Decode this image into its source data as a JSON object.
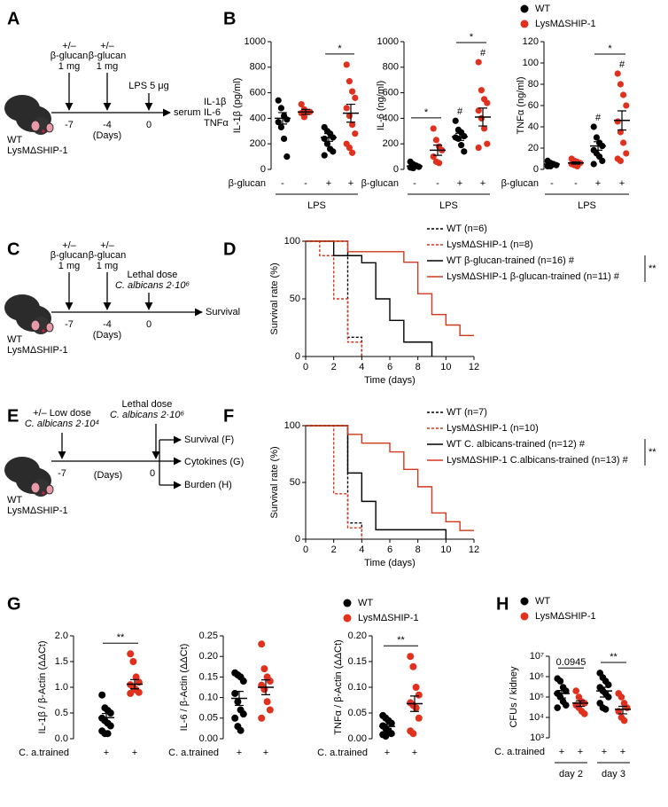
{
  "diagrams": {
    "A": {
      "label": "A",
      "doses": [
        {
          "sign": "+/–",
          "agent": "β-glucan",
          "dose": "1 mg",
          "day": "-7"
        },
        {
          "sign": "+/–",
          "agent": "β-glucan",
          "dose": "1 mg",
          "day": "-4"
        }
      ],
      "challenge": {
        "agent": "LPS 5 μg",
        "day": "0"
      },
      "unit": "(Days)",
      "readout": [
        "serum",
        "IL-1β",
        "IL-6",
        "TNFα"
      ],
      "mice": [
        "WT",
        "LysMΔSHIP-1"
      ]
    },
    "C": {
      "label": "C",
      "doses": [
        {
          "sign": "+/–",
          "agent": "β-glucan",
          "dose": "1 mg",
          "day": "-7"
        },
        {
          "sign": "+/–",
          "agent": "β-glucan",
          "dose": "1 mg",
          "day": "-4"
        }
      ],
      "challenge": {
        "dose": "Lethal dose",
        "agent": "C. albicans 2·10⁶",
        "day": "0"
      },
      "unit": "(Days)",
      "readout": "Survival",
      "mice": [
        "WT",
        "LysMΔSHIP-1"
      ]
    },
    "E": {
      "label": "E",
      "dose": {
        "text": "+/– Low dose",
        "agent": "C. albicans 2·10⁴",
        "day": "-7"
      },
      "challenge": {
        "dose": "Lethal dose",
        "agent": "C. albicans 2·10⁶",
        "day": "0"
      },
      "unit": "(Days)",
      "readouts": [
        "Survival (F)",
        "Cytokines (G)",
        "Burden (H)"
      ],
      "mice": [
        "WT",
        "LysMΔSHIP-1"
      ]
    }
  },
  "chart_data": [
    {
      "type": "strip",
      "panel": "B",
      "legend": [
        {
          "name": "WT",
          "color": "#000000"
        },
        {
          "name": "LysMΔSHIP-1",
          "color": "#e0301e"
        }
      ],
      "ylabel": "IL-1β (pg/ml)",
      "ylim": [
        0,
        1000
      ],
      "yticks": [
        0,
        200,
        400,
        600,
        800,
        1000
      ],
      "row_label": "β-glucan",
      "groups": [
        {
          "category": "-",
          "color": "#000000",
          "values": [
            540,
            480,
            420,
            390,
            370,
            330,
            240,
            100
          ],
          "mean": 400,
          "sem": 45
        },
        {
          "category": "-",
          "color": "#e0301e",
          "values": [
            510,
            470,
            450,
            450,
            440,
            410
          ],
          "mean": 450,
          "sem": 20
        },
        {
          "category": "+",
          "color": "#000000",
          "values": [
            330,
            300,
            280,
            250,
            240,
            200,
            160,
            140,
            110
          ],
          "mean": 250,
          "sem": 30
        },
        {
          "category": "+",
          "color": "#e0301e",
          "values": [
            820,
            690,
            610,
            560,
            480,
            420,
            350,
            280,
            200,
            170,
            130
          ],
          "mean": 440,
          "sem": 70
        }
      ],
      "brackets": [
        {
          "from": 2,
          "to": 3,
          "label": "*"
        }
      ],
      "hashes": [],
      "spans": [
        {
          "from": 0,
          "to": 3,
          "label": "LPS"
        }
      ]
    },
    {
      "type": "strip",
      "ylabel": "IL-6 (ng/ml)",
      "ylim": [
        0,
        1000
      ],
      "yticks": [
        0,
        200,
        400,
        600,
        800,
        1000
      ],
      "row_label": "β-glucan",
      "groups": [
        {
          "category": "-",
          "color": "#000000",
          "values": [
            60,
            40,
            30,
            20,
            15,
            10
          ],
          "mean": 25,
          "sem": 8
        },
        {
          "category": "-",
          "color": "#e0301e",
          "values": [
            320,
            230,
            180,
            150,
            100,
            60,
            50
          ],
          "mean": 150,
          "sem": 40
        },
        {
          "category": "+",
          "color": "#000000",
          "values": [
            380,
            310,
            290,
            260,
            250,
            240,
            190,
            140
          ],
          "mean": 255,
          "sem": 28
        },
        {
          "category": "+",
          "color": "#e0301e",
          "values": [
            840,
            620,
            550,
            520,
            460,
            400,
            320,
            200,
            170
          ],
          "mean": 410,
          "sem": 70
        }
      ],
      "brackets": [
        {
          "from": 0,
          "to": 1,
          "label": "*"
        },
        {
          "from": 2,
          "to": 3,
          "label": "*"
        }
      ],
      "hashes": [
        {
          "group": 2,
          "label": "#"
        },
        {
          "group": 3,
          "label": "#"
        }
      ],
      "spans": [
        {
          "from": 0,
          "to": 3,
          "label": "LPS"
        }
      ]
    },
    {
      "type": "strip",
      "ylabel": "TNFα (ng/ml)",
      "ylim": [
        0,
        120
      ],
      "yticks": [
        0,
        20,
        40,
        60,
        80,
        100,
        120
      ],
      "row_label": "β-glucan",
      "groups": [
        {
          "category": "-",
          "color": "#000000",
          "values": [
            8,
            6,
            5,
            4,
            3,
            3
          ],
          "mean": 5,
          "sem": 1
        },
        {
          "category": "-",
          "color": "#e0301e",
          "values": [
            10,
            8,
            7,
            6,
            5,
            4,
            3
          ],
          "mean": 6,
          "sem": 1
        },
        {
          "category": "+",
          "color": "#000000",
          "values": [
            40,
            30,
            25,
            22,
            18,
            15,
            12,
            8,
            5
          ],
          "mean": 22,
          "sem": 4
        },
        {
          "category": "+",
          "color": "#e0301e",
          "values": [
            90,
            80,
            70,
            60,
            45,
            35,
            25,
            15,
            10,
            8
          ],
          "mean": 46,
          "sem": 9
        }
      ],
      "brackets": [
        {
          "from": 2,
          "to": 3,
          "label": "*"
        }
      ],
      "hashes": [
        {
          "group": 2,
          "label": "#"
        },
        {
          "group": 3,
          "label": "#"
        }
      ],
      "spans": [
        {
          "from": 0,
          "to": 3,
          "label": "LPS"
        }
      ]
    },
    {
      "type": "survival",
      "panel": "D",
      "xlabel": "Time (days)",
      "ylabel": "Survival rate (%)",
      "xlim": [
        0,
        12
      ],
      "xticks": [
        0,
        2,
        4,
        6,
        8,
        10,
        12
      ],
      "ylim": [
        0,
        100
      ],
      "yticks": [
        0,
        50,
        100
      ],
      "series": [
        {
          "name": "WT (n=6)",
          "color": "#000000",
          "dashed": true,
          "x": [
            0,
            3,
            3,
            4,
            4
          ],
          "values": [
            100,
            100,
            16.7,
            16.7,
            0
          ]
        },
        {
          "name": "LysMΔSHIP-1 (n=8)",
          "color": "#d2381c",
          "dashed": true,
          "x": [
            0,
            1,
            1,
            2,
            2,
            3,
            3,
            4,
            4
          ],
          "values": [
            100,
            100,
            87.5,
            87.5,
            50,
            50,
            12.5,
            12.5,
            0
          ]
        },
        {
          "name": "WT β-glucan-trained (n=16) #",
          "color": "#000000",
          "dashed": false,
          "x": [
            0,
            2,
            2,
            4,
            4,
            5,
            5,
            6,
            6,
            7,
            7,
            9,
            9
          ],
          "values": [
            100,
            100,
            87.5,
            87.5,
            81.3,
            81.3,
            50,
            50,
            31.3,
            31.3,
            12.5,
            12.5,
            0
          ]
        },
        {
          "name": "LysMΔSHIP-1 β-glucan-trained (n=11) #",
          "color": "#d2381c",
          "dashed": false,
          "x": [
            0,
            3,
            3,
            7,
            7,
            8,
            8,
            9,
            9,
            10,
            10,
            11,
            11,
            12
          ],
          "values": [
            100,
            100,
            90.9,
            90.9,
            81.8,
            81.8,
            54.5,
            54.5,
            36.4,
            36.4,
            27.3,
            27.3,
            18.2,
            18.2
          ]
        }
      ],
      "bracket": {
        "from": 2,
        "to": 3,
        "label": "**"
      }
    },
    {
      "type": "survival",
      "panel": "F",
      "xlabel": "Time (days)",
      "ylabel": "Survival rate (%)",
      "xlim": [
        0,
        12
      ],
      "xticks": [
        0,
        2,
        4,
        6,
        8,
        10,
        12
      ],
      "ylim": [
        0,
        100
      ],
      "yticks": [
        0,
        50,
        100
      ],
      "series": [
        {
          "name": "WT (n=7)",
          "color": "#000000",
          "dashed": true,
          "x": [
            0,
            3,
            3,
            4,
            4
          ],
          "values": [
            100,
            100,
            14.3,
            14.3,
            0
          ]
        },
        {
          "name": "LysMΔSHIP-1 (n=10)",
          "color": "#d2381c",
          "dashed": true,
          "x": [
            0,
            2,
            2,
            3,
            3,
            4,
            4
          ],
          "values": [
            100,
            100,
            40,
            40,
            10,
            10,
            0
          ]
        },
        {
          "name": "WT C. albicans-trained (n=12) #",
          "color": "#000000",
          "dashed": false,
          "x": [
            0,
            3,
            3,
            4,
            4,
            5,
            5,
            10,
            10
          ],
          "values": [
            100,
            100,
            58.3,
            58.3,
            33.3,
            33.3,
            8.3,
            8.3,
            0
          ]
        },
        {
          "name": "LysMΔSHIP-1 C.albicans-trained (n=13) #",
          "color": "#d2381c",
          "dashed": false,
          "x": [
            0,
            3,
            3,
            4,
            4,
            6,
            6,
            7,
            7,
            8,
            8,
            9,
            9,
            10,
            10,
            11,
            11,
            12
          ],
          "values": [
            100,
            100,
            92.3,
            92.3,
            84.6,
            84.6,
            76.9,
            76.9,
            61.5,
            61.5,
            46.2,
            46.2,
            23.1,
            23.1,
            15.4,
            15.4,
            7.7,
            7.7
          ]
        }
      ],
      "bracket": {
        "from": 2,
        "to": 3,
        "label": "**"
      }
    },
    {
      "type": "strip",
      "panel": "G",
      "legend": [
        {
          "name": "WT",
          "color": "#000000"
        },
        {
          "name": "LysMΔSHIP-1",
          "color": "#e0301e"
        }
      ],
      "ylabel": "IL-1β / β-Actin (ΔΔCt)",
      "ylim": [
        0,
        2
      ],
      "yticks": [
        {
          "value": 0,
          "label": "0.0"
        },
        0.5,
        {
          "value": 1,
          "label": "1.0"
        },
        1.5,
        {
          "value": 2,
          "label": "2.0"
        }
      ],
      "row_label": "C. a.trained",
      "groups": [
        {
          "category": "+",
          "color": "#000000",
          "values": [
            0.85,
            0.6,
            0.55,
            0.5,
            0.4,
            0.35,
            0.3,
            0.25,
            0.15,
            0.1,
            0.1
          ],
          "mean": 0.41,
          "sem": 0.08
        },
        {
          "category": "+",
          "color": "#e0301e",
          "values": [
            1.65,
            1.5,
            1.2,
            1.1,
            1.05,
            1.0,
            0.95,
            0.9,
            0.88
          ],
          "mean": 1.06,
          "sem": 0.09
        }
      ],
      "brackets": [
        {
          "from": 0,
          "to": 1,
          "label": "**"
        }
      ],
      "hashes": [],
      "spans": []
    },
    {
      "type": "strip",
      "ylabel": "IL-6 / β-Actin (ΔΔCt)",
      "ylim": [
        0,
        0.25
      ],
      "yticks": [
        {
          "value": 0,
          "label": "0.00"
        },
        0.05,
        {
          "value": 0.1,
          "label": "0.10"
        },
        0.15,
        {
          "value": 0.2,
          "label": "0.20"
        },
        0.25
      ],
      "row_label": "C. a.trained",
      "groups": [
        {
          "category": "+",
          "color": "#000000",
          "values": [
            0.16,
            0.155,
            0.15,
            0.14,
            0.11,
            0.09,
            0.07,
            0.06,
            0.05,
            0.03,
            0.02
          ],
          "mean": 0.098,
          "sem": 0.017
        },
        {
          "category": "+",
          "color": "#e0301e",
          "values": [
            0.23,
            0.17,
            0.15,
            0.14,
            0.13,
            0.12,
            0.09,
            0.07,
            0.05
          ],
          "mean": 0.125,
          "sem": 0.018
        }
      ],
      "brackets": [],
      "hashes": [],
      "spans": []
    },
    {
      "type": "strip",
      "ylabel": "TNFα / β-Actin (ΔΔCt)",
      "ylim": [
        0,
        0.2
      ],
      "yticks": [
        {
          "value": 0,
          "label": "0.00"
        },
        0.05,
        {
          "value": 0.1,
          "label": "0.10"
        },
        0.15,
        {
          "value": 0.2,
          "label": "0.20"
        }
      ],
      "row_label": "C. a.trained",
      "groups": [
        {
          "category": "+",
          "color": "#000000",
          "values": [
            0.045,
            0.04,
            0.035,
            0.03,
            0.025,
            0.02,
            0.015,
            0.01,
            0.008,
            0.005
          ],
          "mean": 0.024,
          "sem": 0.004
        },
        {
          "category": "+",
          "color": "#e0301e",
          "values": [
            0.16,
            0.14,
            0.1,
            0.085,
            0.07,
            0.065,
            0.06,
            0.04,
            0.015,
            0.01
          ],
          "mean": 0.068,
          "sem": 0.015
        }
      ],
      "brackets": [
        {
          "from": 0,
          "to": 1,
          "label": "**"
        }
      ],
      "hashes": [],
      "spans": []
    },
    {
      "type": "strip",
      "panel": "H",
      "legend": [
        {
          "name": "WT",
          "color": "#000000"
        },
        {
          "name": "LysMΔSHIP-1",
          "color": "#e0301e"
        }
      ],
      "ylabel": "CFUs / kidney",
      "log": true,
      "ylim": [
        1000,
        10000000
      ],
      "yticks": [
        {
          "value": 1000,
          "label": "10³"
        },
        {
          "value": 10000,
          "label": "10⁴"
        },
        {
          "value": 100000,
          "label": "10⁵"
        },
        {
          "value": 1000000,
          "label": "10⁶"
        },
        {
          "value": 10000000,
          "label": "10⁷"
        }
      ],
      "row_label": "C. a.trained",
      "groups": [
        {
          "category": "+",
          "color": "#000000",
          "values": [
            800000,
            600000,
            300000,
            200000,
            150000,
            100000,
            60000,
            40000,
            30000
          ],
          "mean": 150000,
          "sem": 60000
        },
        {
          "category": "+",
          "color": "#e0301e",
          "values": [
            200000,
            100000,
            60000,
            50000,
            40000,
            30000,
            20000,
            15000
          ],
          "mean": 50000,
          "sem": 15000
        },
        {
          "category": "+",
          "color": "#000000",
          "values": [
            1500000,
            900000,
            600000,
            400000,
            300000,
            200000,
            150000,
            100000,
            50000,
            30000,
            25000
          ],
          "mean": 200000,
          "sem": 100000
        },
        {
          "category": "+",
          "color": "#e0301e",
          "values": [
            150000,
            100000,
            50000,
            30000,
            20000,
            10000,
            7000
          ],
          "mean": 25000,
          "sem": 10000
        }
      ],
      "brackets": [
        {
          "from": 0,
          "to": 1,
          "label": "0.0945"
        },
        {
          "from": 2,
          "to": 3,
          "label": "**"
        }
      ],
      "hashes": [],
      "spans": [
        {
          "from": 0,
          "to": 1,
          "label": "day 2"
        },
        {
          "from": 2,
          "to": 3,
          "label": "day 3"
        }
      ]
    }
  ]
}
